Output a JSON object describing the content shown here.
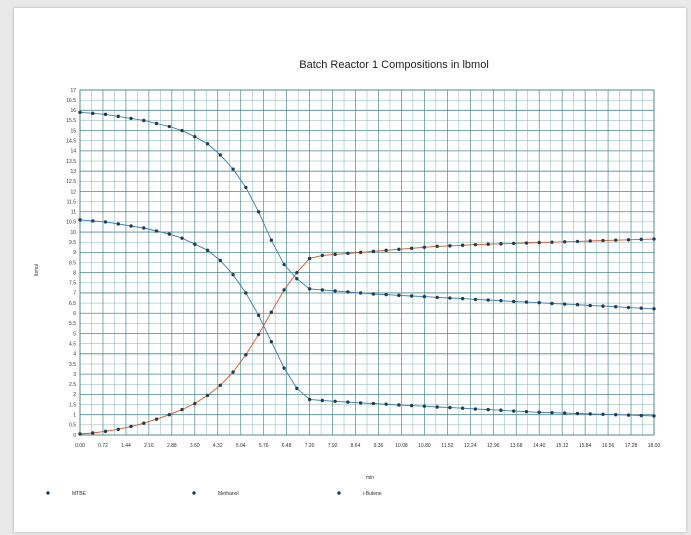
{
  "chart_data": {
    "type": "line",
    "title": "Batch Reactor 1 Compositions in lbmol",
    "xlabel": "min",
    "ylabel": "lbmol",
    "xlim": [
      0,
      18.0
    ],
    "ylim": [
      0,
      17
    ],
    "x_tick_labels": [
      "0.00",
      "0.72",
      "1.44",
      "2.16",
      "2.88",
      "3.60",
      "4.32",
      "5.04",
      "5.76",
      "6.48",
      "7.20",
      "7.92",
      "8.64",
      "9.36",
      "10.08",
      "10.80",
      "11.52",
      "12.24",
      "12.96",
      "13.68",
      "14.40",
      "15.12",
      "15.84",
      "16.56",
      "17.28",
      "18.00"
    ],
    "y_tick_labels": [
      "0",
      "0.5",
      "1",
      "1.5",
      "2",
      "2.5",
      "3",
      "3.5",
      "4",
      "4.5",
      "5",
      "5.5",
      "6",
      "6.5",
      "7",
      "7.5",
      "8",
      "8.5",
      "9",
      "9.5",
      "10",
      "10.5",
      "11",
      "11.5",
      "12",
      "12.5",
      "13",
      "13.5",
      "14",
      "14.5",
      "15",
      "15.5",
      "16",
      "16.5",
      "17"
    ],
    "grid": true,
    "legend_position": "bottom",
    "x": [
      0,
      0.4,
      0.8,
      1.2,
      1.6,
      2.0,
      2.4,
      2.8,
      3.2,
      3.6,
      4.0,
      4.4,
      4.8,
      5.2,
      5.6,
      6.0,
      6.4,
      6.8,
      7.2,
      7.6,
      8.0,
      8.4,
      8.8,
      9.2,
      9.6,
      10.0,
      10.4,
      10.8,
      11.2,
      11.6,
      12.0,
      12.4,
      12.8,
      13.2,
      13.6,
      14.0,
      14.4,
      14.8,
      15.2,
      15.6,
      16.0,
      16.4,
      16.8,
      17.2,
      17.6,
      18.0
    ],
    "series": [
      {
        "name": "MTBE",
        "color": "#d9532c",
        "values": [
          0.05,
          0.1,
          0.18,
          0.28,
          0.42,
          0.58,
          0.78,
          1.0,
          1.25,
          1.55,
          1.95,
          2.45,
          3.1,
          3.95,
          4.95,
          6.05,
          7.15,
          8.0,
          8.7,
          8.85,
          8.9,
          8.95,
          9.0,
          9.05,
          9.1,
          9.15,
          9.2,
          9.25,
          9.3,
          9.32,
          9.35,
          9.38,
          9.4,
          9.42,
          9.44,
          9.46,
          9.48,
          9.5,
          9.52,
          9.54,
          9.56,
          9.58,
          9.6,
          9.62,
          9.64,
          9.66
        ]
      },
      {
        "name": "Methanol",
        "color": "#3a7dbd",
        "values": [
          15.9,
          15.85,
          15.8,
          15.7,
          15.6,
          15.5,
          15.35,
          15.2,
          15.0,
          14.7,
          14.35,
          13.8,
          13.1,
          12.2,
          11.0,
          9.6,
          8.4,
          7.7,
          7.2,
          7.15,
          7.1,
          7.05,
          7.0,
          6.95,
          6.92,
          6.88,
          6.85,
          6.82,
          6.78,
          6.75,
          6.72,
          6.68,
          6.65,
          6.62,
          6.58,
          6.55,
          6.52,
          6.48,
          6.45,
          6.42,
          6.38,
          6.35,
          6.32,
          6.28,
          6.25,
          6.22
        ]
      },
      {
        "name": "i-Butene",
        "color": "#3a7dbd",
        "values": [
          10.6,
          10.55,
          10.5,
          10.4,
          10.3,
          10.2,
          10.05,
          9.9,
          9.7,
          9.4,
          9.1,
          8.6,
          7.9,
          7.0,
          5.9,
          4.6,
          3.3,
          2.3,
          1.75,
          1.7,
          1.66,
          1.62,
          1.58,
          1.55,
          1.52,
          1.48,
          1.45,
          1.42,
          1.38,
          1.35,
          1.32,
          1.28,
          1.25,
          1.22,
          1.18,
          1.15,
          1.12,
          1.1,
          1.08,
          1.06,
          1.04,
          1.02,
          1.0,
          0.98,
          0.96,
          0.94
        ]
      }
    ]
  }
}
